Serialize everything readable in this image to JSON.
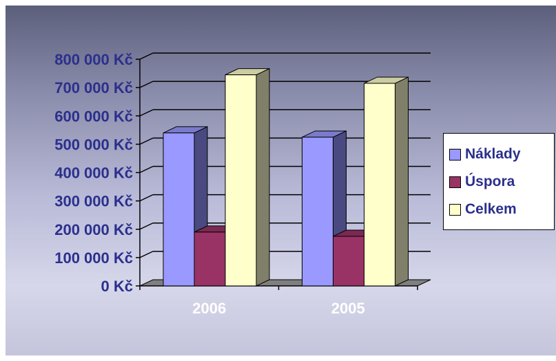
{
  "chart_data": {
    "type": "bar",
    "categories": [
      "2006",
      "2005"
    ],
    "series": [
      {
        "name": "Náklady",
        "values": [
          540000,
          525000
        ],
        "color": "#9999ff"
      },
      {
        "name": "Úspora",
        "values": [
          190000,
          175000
        ],
        "color": "#993366"
      },
      {
        "name": "Celkem",
        "values": [
          745000,
          715000
        ],
        "color": "#ffffcc"
      }
    ],
    "y_ticks": [
      "0 Kč",
      "100 000 Kč",
      "200 000 Kč",
      "300 000 Kč",
      "400 000 Kč",
      "500 000 Kč",
      "600 000 Kč",
      "700 000 Kč",
      "800 000 Kč"
    ],
    "ylim": [
      0,
      800000
    ],
    "title": "",
    "xlabel": "",
    "ylabel": "",
    "grid": true,
    "legend_position": "right",
    "style": "3d-column"
  },
  "colors": {
    "axis_text": "#2b2f8c",
    "category_text": "#ffffff"
  }
}
